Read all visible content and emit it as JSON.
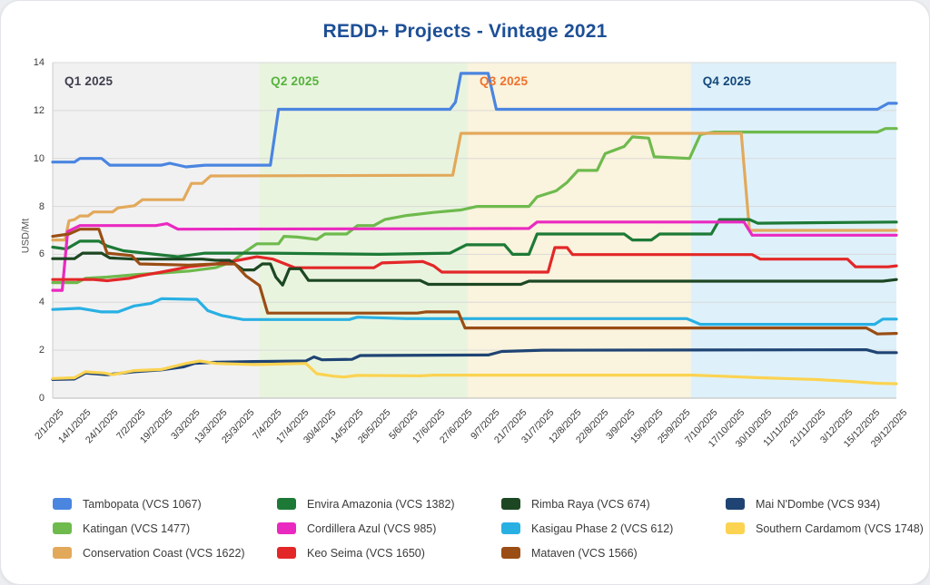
{
  "page": {
    "title": "REDD+ Projects - Vintage 2021"
  },
  "chart_data": {
    "type": "line",
    "title": "REDD+ Projects - Vintage 2021",
    "xlabel": "",
    "ylabel": "USD/Mt",
    "ylim": [
      0,
      14
    ],
    "yticks": [
      0,
      2,
      4,
      6,
      8,
      10,
      12,
      14
    ],
    "grid": "horizontal",
    "legend_position": "bottom",
    "x_labels": [
      "2/1/2025",
      "14/1/2025",
      "24/1/2025",
      "7/2/2025",
      "19/2/2025",
      "3/3/2025",
      "13/3/2025",
      "25/3/2025",
      "7/4/2025",
      "17/4/2025",
      "30/4/2025",
      "14/5/2025",
      "26/5/2025",
      "5/6/2025",
      "17/6/2025",
      "27/6/2025",
      "9/7/2025",
      "21/7/2025",
      "31/7/2025",
      "12/8/2025",
      "22/8/2025",
      "3/9/2025",
      "15/9/2025",
      "25/9/2025",
      "7/10/2025",
      "17/10/2025",
      "30/10/2025",
      "11/11/2025",
      "21/11/2025",
      "3/12/2025",
      "15/12/2025",
      "29/12/2025"
    ],
    "quarters": [
      {
        "label": "Q1 2025",
        "text_color": "#3f3f4e",
        "band_color": "#f1f1f2",
        "start": 0,
        "end": 7.58
      },
      {
        "label": "Q2 2025",
        "text_color": "#56b33d",
        "band_color": "#e9f4df",
        "start": 7.58,
        "end": 15.25
      },
      {
        "label": "Q3 2025",
        "text_color": "#f0722c",
        "band_color": "#faf3dd",
        "start": 15.25,
        "end": 23.45
      },
      {
        "label": "Q4 2025",
        "text_color": "#15487c",
        "band_color": "#def1fa",
        "start": 23.45,
        "end": 31
      }
    ],
    "series": [
      {
        "name": "Tambopata (VCS 1067)",
        "color": "#4a85e0",
        "points": [
          [
            0,
            9.85
          ],
          [
            0.8,
            9.85
          ],
          [
            1,
            10.0
          ],
          [
            1.8,
            10.0
          ],
          [
            2.1,
            9.72
          ],
          [
            4,
            9.72
          ],
          [
            4.3,
            9.8
          ],
          [
            4.9,
            9.65
          ],
          [
            5.6,
            9.72
          ],
          [
            8,
            9.72
          ],
          [
            8.3,
            12.05
          ],
          [
            14.6,
            12.05
          ],
          [
            14.8,
            12.35
          ],
          [
            15,
            13.55
          ],
          [
            16,
            13.55
          ],
          [
            16.3,
            12.05
          ],
          [
            30.3,
            12.05
          ],
          [
            30.7,
            12.3
          ],
          [
            31,
            12.3
          ]
        ]
      },
      {
        "name": "Katingan (VCS 1477)",
        "color": "#6eba4d",
        "points": [
          [
            0,
            4.82
          ],
          [
            0.9,
            4.82
          ],
          [
            1.2,
            5.0
          ],
          [
            2,
            5.05
          ],
          [
            3,
            5.15
          ],
          [
            4,
            5.22
          ],
          [
            5,
            5.3
          ],
          [
            6,
            5.45
          ],
          [
            6.6,
            5.7
          ],
          [
            7,
            6.05
          ],
          [
            7.5,
            6.44
          ],
          [
            8.3,
            6.44
          ],
          [
            8.5,
            6.75
          ],
          [
            9,
            6.72
          ],
          [
            9.7,
            6.62
          ],
          [
            10,
            6.85
          ],
          [
            10.8,
            6.85
          ],
          [
            11.2,
            7.2
          ],
          [
            11.8,
            7.2
          ],
          [
            12.2,
            7.45
          ],
          [
            13,
            7.62
          ],
          [
            14,
            7.75
          ],
          [
            15,
            7.85
          ],
          [
            15.6,
            8.0
          ],
          [
            17.5,
            8.0
          ],
          [
            17.8,
            8.4
          ],
          [
            18.5,
            8.65
          ],
          [
            18.9,
            9.0
          ],
          [
            19.3,
            9.5
          ],
          [
            20,
            9.5
          ],
          [
            20.3,
            10.2
          ],
          [
            21,
            10.5
          ],
          [
            21.3,
            10.9
          ],
          [
            21.9,
            10.85
          ],
          [
            22.1,
            10.07
          ],
          [
            23.4,
            10.0
          ],
          [
            23.8,
            11.0
          ],
          [
            24.3,
            11.1
          ],
          [
            30.3,
            11.1
          ],
          [
            30.6,
            11.25
          ],
          [
            31,
            11.25
          ]
        ]
      },
      {
        "name": "Conservation Coast (VCS 1622)",
        "color": "#e2a95b",
        "points": [
          [
            0,
            6.6
          ],
          [
            0.45,
            6.6
          ],
          [
            0.6,
            7.4
          ],
          [
            0.8,
            7.45
          ],
          [
            1,
            7.6
          ],
          [
            1.3,
            7.6
          ],
          [
            1.5,
            7.77
          ],
          [
            2.2,
            7.77
          ],
          [
            2.4,
            7.94
          ],
          [
            3,
            8.03
          ],
          [
            3.3,
            8.28
          ],
          [
            4.8,
            8.28
          ],
          [
            5.1,
            8.96
          ],
          [
            5.5,
            8.96
          ],
          [
            5.8,
            9.27
          ],
          [
            14.7,
            9.3
          ],
          [
            15,
            11.05
          ],
          [
            25.3,
            11.05
          ],
          [
            25.6,
            7.0
          ],
          [
            31,
            7.0
          ]
        ]
      },
      {
        "name": "Envira Amazonia (VCS 1382)",
        "color": "#1d7a36",
        "points": [
          [
            0,
            6.3
          ],
          [
            0.5,
            6.22
          ],
          [
            1,
            6.55
          ],
          [
            1.7,
            6.55
          ],
          [
            2,
            6.35
          ],
          [
            2.6,
            6.15
          ],
          [
            3.4,
            6.05
          ],
          [
            4.6,
            5.9
          ],
          [
            5.6,
            6.05
          ],
          [
            8,
            6.05
          ],
          [
            12,
            6.0
          ],
          [
            14.6,
            6.05
          ],
          [
            15.2,
            6.4
          ],
          [
            16.6,
            6.4
          ],
          [
            16.9,
            6.0
          ],
          [
            17.5,
            6.0
          ],
          [
            17.8,
            6.85
          ],
          [
            21,
            6.85
          ],
          [
            21.3,
            6.6
          ],
          [
            22,
            6.6
          ],
          [
            22.3,
            6.85
          ],
          [
            24.2,
            6.85
          ],
          [
            24.5,
            7.45
          ],
          [
            25.6,
            7.45
          ],
          [
            25.9,
            7.3
          ],
          [
            31,
            7.35
          ]
        ]
      },
      {
        "name": "Cordillera Azul (VCS 985)",
        "color": "#ea29c0",
        "points": [
          [
            0,
            4.5
          ],
          [
            0.35,
            4.5
          ],
          [
            0.55,
            6.95
          ],
          [
            1,
            7.2
          ],
          [
            3.8,
            7.2
          ],
          [
            4.2,
            7.28
          ],
          [
            4.6,
            7.05
          ],
          [
            17.5,
            7.08
          ],
          [
            17.8,
            7.35
          ],
          [
            25.4,
            7.35
          ],
          [
            25.7,
            6.8
          ],
          [
            31,
            6.8
          ]
        ]
      },
      {
        "name": "Keo Seima (VCS 1650)",
        "color": "#e32728",
        "points": [
          [
            0,
            4.95
          ],
          [
            1.5,
            4.95
          ],
          [
            2,
            4.9
          ],
          [
            2.8,
            5.0
          ],
          [
            3.2,
            5.1
          ],
          [
            4,
            5.26
          ],
          [
            5,
            5.48
          ],
          [
            6,
            5.6
          ],
          [
            6.9,
            5.77
          ],
          [
            7.5,
            5.9
          ],
          [
            8.1,
            5.8
          ],
          [
            8.9,
            5.44
          ],
          [
            11.8,
            5.44
          ],
          [
            12.1,
            5.64
          ],
          [
            13.6,
            5.7
          ],
          [
            14,
            5.52
          ],
          [
            14.3,
            5.26
          ],
          [
            18.2,
            5.26
          ],
          [
            18.45,
            6.28
          ],
          [
            18.9,
            6.28
          ],
          [
            19.1,
            5.99
          ],
          [
            25.7,
            5.99
          ],
          [
            26,
            5.8
          ],
          [
            29.2,
            5.8
          ],
          [
            29.5,
            5.48
          ],
          [
            30.7,
            5.48
          ],
          [
            31,
            5.52
          ]
        ]
      },
      {
        "name": "Rimba Raya (VCS 674)",
        "color": "#1c4722",
        "points": [
          [
            0,
            5.82
          ],
          [
            0.8,
            5.82
          ],
          [
            1.1,
            6.05
          ],
          [
            1.8,
            6.05
          ],
          [
            2.1,
            5.85
          ],
          [
            3,
            5.8
          ],
          [
            5.5,
            5.8
          ],
          [
            6,
            5.75
          ],
          [
            6.5,
            5.75
          ],
          [
            7,
            5.35
          ],
          [
            7.4,
            5.35
          ],
          [
            7.7,
            5.6
          ],
          [
            8,
            5.6
          ],
          [
            8.2,
            5.05
          ],
          [
            8.45,
            4.72
          ],
          [
            8.7,
            5.4
          ],
          [
            9.1,
            5.4
          ],
          [
            9.4,
            4.91
          ],
          [
            13.5,
            4.91
          ],
          [
            13.8,
            4.75
          ],
          [
            17.2,
            4.75
          ],
          [
            17.5,
            4.88
          ],
          [
            30.5,
            4.88
          ],
          [
            31,
            4.95
          ]
        ]
      },
      {
        "name": "Kasigau Phase 2 (VCS 612)",
        "color": "#29b0e3",
        "points": [
          [
            0,
            3.7
          ],
          [
            1,
            3.75
          ],
          [
            1.8,
            3.6
          ],
          [
            2.4,
            3.6
          ],
          [
            3,
            3.85
          ],
          [
            3.6,
            3.95
          ],
          [
            4,
            4.15
          ],
          [
            5.3,
            4.12
          ],
          [
            5.7,
            3.65
          ],
          [
            6.2,
            3.45
          ],
          [
            7,
            3.28
          ],
          [
            10.9,
            3.28
          ],
          [
            11.2,
            3.38
          ],
          [
            13,
            3.32
          ],
          [
            23.3,
            3.32
          ],
          [
            23.8,
            3.08
          ],
          [
            30.2,
            3.08
          ],
          [
            30.5,
            3.3
          ],
          [
            31,
            3.3
          ]
        ]
      },
      {
        "name": "Mataven (VCS 1566)",
        "color": "#9a4d14",
        "points": [
          [
            0,
            6.75
          ],
          [
            0.6,
            6.85
          ],
          [
            1,
            7.05
          ],
          [
            1.7,
            7.05
          ],
          [
            2,
            6.05
          ],
          [
            2.9,
            5.95
          ],
          [
            3.2,
            5.6
          ],
          [
            5,
            5.55
          ],
          [
            6,
            5.6
          ],
          [
            6.7,
            5.6
          ],
          [
            7.1,
            5.1
          ],
          [
            7.6,
            4.7
          ],
          [
            7.9,
            3.55
          ],
          [
            13.4,
            3.55
          ],
          [
            13.7,
            3.6
          ],
          [
            14.9,
            3.6
          ],
          [
            15.15,
            2.93
          ],
          [
            29.9,
            2.93
          ],
          [
            30.3,
            2.68
          ],
          [
            31,
            2.7
          ]
        ]
      },
      {
        "name": "Mai N'Dombe (VCS 934)",
        "color": "#1f4474",
        "points": [
          [
            0,
            0.78
          ],
          [
            0.8,
            0.8
          ],
          [
            1.2,
            1.05
          ],
          [
            2,
            0.98
          ],
          [
            3,
            1.1
          ],
          [
            4,
            1.18
          ],
          [
            4.8,
            1.3
          ],
          [
            5.2,
            1.45
          ],
          [
            6,
            1.5
          ],
          [
            7.4,
            1.53
          ],
          [
            9.3,
            1.55
          ],
          [
            9.6,
            1.72
          ],
          [
            9.9,
            1.6
          ],
          [
            11,
            1.62
          ],
          [
            11.3,
            1.78
          ],
          [
            16,
            1.8
          ],
          [
            16.5,
            1.95
          ],
          [
            18,
            2.0
          ],
          [
            29.9,
            2.02
          ],
          [
            30.3,
            1.9
          ],
          [
            31,
            1.9
          ]
        ]
      },
      {
        "name": "Southern Cardamom (VCS 1748)",
        "color": "#fbd351",
        "points": [
          [
            0,
            0.82
          ],
          [
            0.8,
            0.85
          ],
          [
            1.2,
            1.1
          ],
          [
            1.9,
            1.05
          ],
          [
            2.2,
            0.98
          ],
          [
            3,
            1.15
          ],
          [
            4,
            1.2
          ],
          [
            4.9,
            1.45
          ],
          [
            5.4,
            1.55
          ],
          [
            6,
            1.45
          ],
          [
            7.4,
            1.4
          ],
          [
            9.3,
            1.45
          ],
          [
            9.7,
            1.02
          ],
          [
            10.3,
            0.92
          ],
          [
            10.7,
            0.88
          ],
          [
            11.2,
            0.95
          ],
          [
            13.5,
            0.93
          ],
          [
            14,
            0.96
          ],
          [
            23.5,
            0.96
          ],
          [
            24.5,
            0.92
          ],
          [
            26,
            0.85
          ],
          [
            28,
            0.78
          ],
          [
            29.3,
            0.7
          ],
          [
            30.3,
            0.62
          ],
          [
            31,
            0.6
          ]
        ]
      }
    ]
  }
}
